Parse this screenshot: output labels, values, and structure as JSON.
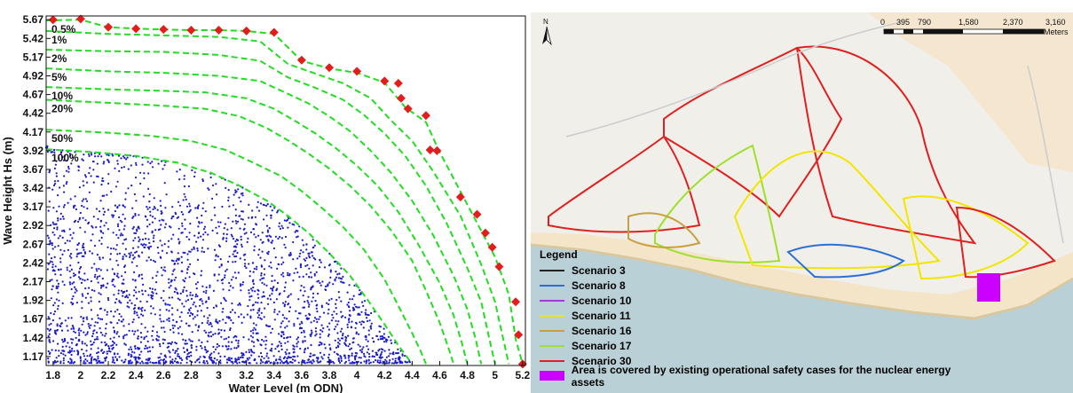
{
  "chart_data": {
    "type": "scatter",
    "xlabel": "Water Level (m ODN)",
    "ylabel": "Wave Height Hs (m)",
    "xlim": [
      1.75,
      5.22
    ],
    "ylim": [
      1.05,
      5.72
    ],
    "xticks": [
      1.8,
      2,
      2.2,
      2.4,
      2.6,
      2.8,
      3,
      3.2,
      3.4,
      3.6,
      3.8,
      4,
      4.2,
      4.4,
      4.6,
      4.8,
      5,
      5.2
    ],
    "xtick_labels": [
      "1.8",
      "2",
      "2.2",
      "2.4",
      "2.6",
      "2.8",
      "3",
      "3.2",
      "3.4",
      "3.6",
      "3.8",
      "4",
      "4.2",
      "4.4",
      "4.6",
      "4.8",
      "5",
      "5.2"
    ],
    "yticks": [
      1.17,
      1.42,
      1.67,
      1.92,
      2.17,
      2.42,
      2.67,
      2.92,
      3.17,
      3.42,
      3.67,
      3.92,
      4.17,
      4.42,
      4.67,
      4.92,
      5.17,
      5.42,
      5.67
    ],
    "ytick_labels": [
      "1.17",
      "1.42",
      "1.67",
      "1.92",
      "2.17",
      "2.42",
      "2.67",
      "2.92",
      "3.17",
      "3.42",
      "3.67",
      "3.92",
      "4.17",
      "4.42",
      "4.67",
      "4.92",
      "5.17",
      "5.42",
      "5.67"
    ],
    "grid": false,
    "series": [
      {
        "name": "",
        "type": "scatter",
        "marker": "diamond",
        "color": "#e31c1c",
        "x": [
          1.8,
          2.0,
          2.2,
          2.4,
          2.6,
          2.8,
          3.0,
          3.2,
          3.4,
          3.6,
          3.8,
          4.0,
          4.2,
          4.3,
          4.32,
          4.37,
          4.5,
          4.53,
          4.58,
          4.75,
          4.87,
          4.93,
          4.98,
          5.03,
          5.15,
          5.17,
          5.2
        ],
        "y": [
          5.67,
          5.68,
          5.57,
          5.55,
          5.54,
          5.53,
          5.53,
          5.52,
          5.5,
          5.13,
          5.03,
          4.98,
          4.85,
          4.82,
          4.62,
          4.48,
          4.39,
          3.93,
          3.92,
          3.3,
          3.07,
          2.82,
          2.63,
          2.37,
          1.9,
          1.46,
          1.07
        ]
      },
      {
        "name": "",
        "type": "scatter",
        "marker": "dot",
        "color": "#1a1acc",
        "count": 2600
      }
    ],
    "contours": [
      {
        "label": "0.5%",
        "color": "#22dd22",
        "x": [
          1.75,
          2.0,
          2.2,
          2.4,
          2.6,
          2.8,
          3.0,
          3.2,
          3.4,
          3.6,
          3.8,
          4.0,
          4.2,
          4.35,
          4.5,
          4.6,
          4.8,
          5.0,
          5.1,
          5.15,
          5.2
        ],
        "y": [
          5.66,
          5.67,
          5.57,
          5.55,
          5.54,
          5.53,
          5.53,
          5.52,
          5.48,
          5.12,
          5.02,
          4.96,
          4.83,
          4.5,
          4.3,
          3.9,
          3.2,
          2.5,
          2.0,
          1.4,
          1.07
        ]
      },
      {
        "label": "1%",
        "color": "#22dd22",
        "x": [
          1.75,
          2.2,
          2.6,
          3.0,
          3.3,
          3.5,
          3.7,
          3.9,
          4.1,
          4.25,
          4.4,
          4.55,
          4.75,
          4.9,
          5.0,
          5.06,
          5.1
        ],
        "y": [
          5.52,
          5.48,
          5.46,
          5.44,
          5.38,
          5.08,
          4.95,
          4.82,
          4.62,
          4.32,
          4.05,
          3.65,
          3.05,
          2.4,
          1.9,
          1.4,
          1.07
        ]
      },
      {
        "label": "2%",
        "color": "#22dd22",
        "x": [
          1.75,
          2.2,
          2.6,
          3.0,
          3.3,
          3.5,
          3.7,
          3.9,
          4.05,
          4.2,
          4.35,
          4.5,
          4.65,
          4.8,
          4.9,
          4.96,
          5.0
        ],
        "y": [
          5.27,
          5.25,
          5.24,
          5.2,
          5.12,
          4.9,
          4.76,
          4.6,
          4.4,
          4.15,
          3.85,
          3.45,
          2.95,
          2.35,
          1.9,
          1.4,
          1.07
        ]
      },
      {
        "label": "5%",
        "color": "#22dd22",
        "x": [
          1.75,
          2.2,
          2.6,
          3.0,
          3.3,
          3.5,
          3.65,
          3.8,
          3.95,
          4.1,
          4.25,
          4.4,
          4.55,
          4.7,
          4.8,
          4.86,
          4.9
        ],
        "y": [
          5.02,
          4.98,
          4.96,
          4.92,
          4.85,
          4.68,
          4.55,
          4.38,
          4.18,
          3.92,
          3.62,
          3.25,
          2.8,
          2.25,
          1.8,
          1.4,
          1.07
        ]
      },
      {
        "label": "10%",
        "color": "#22dd22",
        "x": [
          1.75,
          2.2,
          2.6,
          2.9,
          3.2,
          3.4,
          3.55,
          3.7,
          3.85,
          4.0,
          4.15,
          4.3,
          4.45,
          4.6,
          4.7,
          4.76,
          4.8
        ],
        "y": [
          4.77,
          4.74,
          4.72,
          4.7,
          4.62,
          4.48,
          4.32,
          4.15,
          3.95,
          3.72,
          3.45,
          3.1,
          2.65,
          2.15,
          1.72,
          1.35,
          1.07
        ]
      },
      {
        "label": "20%",
        "color": "#22dd22",
        "x": [
          1.75,
          2.2,
          2.6,
          2.9,
          3.15,
          3.35,
          3.5,
          3.65,
          3.8,
          3.95,
          4.1,
          4.25,
          4.4,
          4.5,
          4.6,
          4.66,
          4.7
        ],
        "y": [
          4.6,
          4.56,
          4.52,
          4.48,
          4.38,
          4.22,
          4.06,
          3.88,
          3.68,
          3.45,
          3.18,
          2.85,
          2.45,
          2.05,
          1.62,
          1.3,
          1.07
        ]
      },
      {
        "label": "50%",
        "color": "#22dd22",
        "x": [
          1.75,
          2.2,
          2.5,
          2.8,
          3.05,
          3.25,
          3.45,
          3.6,
          3.75,
          3.9,
          4.05,
          4.2,
          4.3,
          4.4,
          4.46,
          4.5
        ],
        "y": [
          4.2,
          4.16,
          4.12,
          4.05,
          3.93,
          3.76,
          3.58,
          3.38,
          3.15,
          2.9,
          2.6,
          2.2,
          1.85,
          1.48,
          1.25,
          1.07
        ]
      },
      {
        "label": "100%",
        "color": "#22dd22",
        "x": [
          1.75,
          2.1,
          2.4,
          2.7,
          2.95,
          3.15,
          3.35,
          3.5,
          3.65,
          3.8,
          3.95,
          4.08,
          4.2,
          4.3,
          4.36,
          4.4
        ],
        "y": [
          3.94,
          3.9,
          3.85,
          3.76,
          3.62,
          3.45,
          3.25,
          3.05,
          2.82,
          2.55,
          2.25,
          1.92,
          1.6,
          1.32,
          1.17,
          1.07
        ]
      }
    ]
  },
  "map": {
    "north_label": "N",
    "scale_labels": [
      "0",
      "395",
      "790",
      "1,580",
      "2,370",
      "3,160"
    ],
    "scale_unit": "Meters",
    "legend_title": "Legend",
    "legend_items": [
      {
        "label": "Scenario 3",
        "color": "#222222",
        "kind": "line"
      },
      {
        "label": "Scenario 8",
        "color": "#2a6fd6",
        "kind": "line"
      },
      {
        "label": "Scenario 10",
        "color": "#9b3fd0",
        "kind": "line"
      },
      {
        "label": "Scenario 11",
        "color": "#f2e600",
        "kind": "line"
      },
      {
        "label": "Scenario 16",
        "color": "#c8a040",
        "kind": "line"
      },
      {
        "label": "Scenario 17",
        "color": "#9ee02a",
        "kind": "line"
      },
      {
        "label": "Scenario 30",
        "color": "#e02020",
        "kind": "line"
      },
      {
        "label": "Area is covered by existing operational safety cases for the nuclear energy assets",
        "color": "#cc00ff",
        "kind": "box"
      }
    ],
    "colors": {
      "sea": "#b9d0d6",
      "land": "#f1efe9",
      "sand": "#f5e3c3",
      "asset": "#cc00ff"
    }
  }
}
